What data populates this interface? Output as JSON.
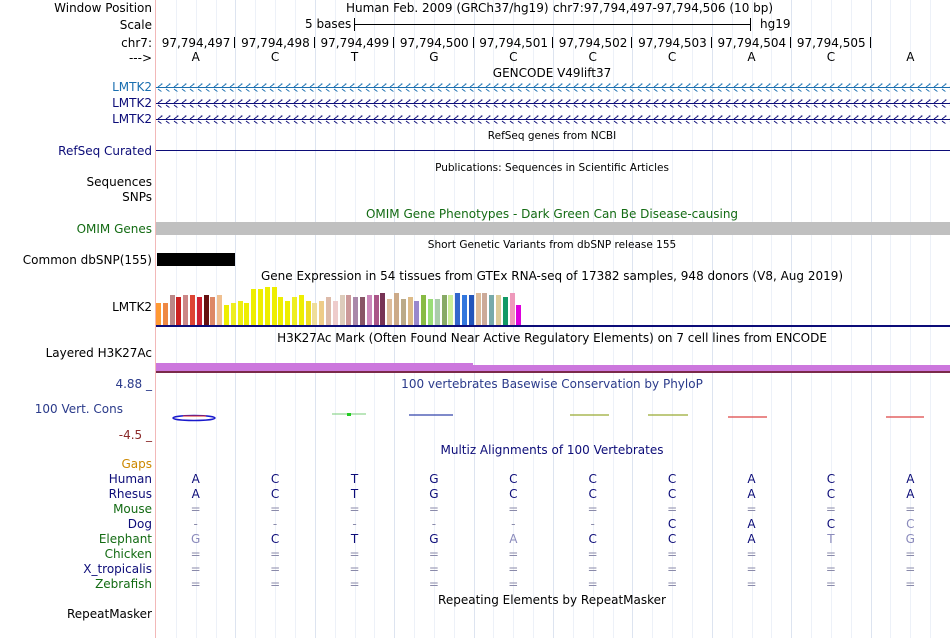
{
  "header": {
    "window_position_label": "Window Position",
    "assembly": "Human Feb. 2009 (GRCh37/hg19)",
    "position": "chr7:97,794,497-97,794,506 (10 bp)",
    "scale_label": "Scale",
    "scale_text": "5 bases",
    "db": "hg19",
    "chrom_label": "chr7:",
    "strand_label": "--->",
    "coords": [
      "97,794,497",
      "97,794,498",
      "97,794,499",
      "97,794,500",
      "97,794,501",
      "97,794,502",
      "97,794,503",
      "97,794,504",
      "97,794,505"
    ],
    "bases": [
      "A",
      "C",
      "T",
      "G",
      "C",
      "C",
      "C",
      "A",
      "C",
      "A"
    ]
  },
  "tracks": {
    "gencode": {
      "title": "GENCODE V49lift37",
      "genes": [
        "LMTK2",
        "LMTK2",
        "LMTK2"
      ],
      "color": "#1a6fb0"
    },
    "refseq": {
      "title": "RefSeq genes from NCBI",
      "label": "RefSeq Curated",
      "color": "#0c0c78"
    },
    "publications": {
      "title": "Publications: Sequences in Scientific Articles",
      "labels": [
        "Sequences",
        "SNPs"
      ]
    },
    "omim": {
      "title": "OMIM Gene Phenotypes - Dark Green Can Be Disease-causing",
      "label": "OMIM Genes",
      "color": "#136b13"
    },
    "dbsnp": {
      "title": "Short Genetic Variants from dbSNP release 155",
      "label": "Common dbSNP(155)"
    },
    "gtex": {
      "title": "Gene Expression in 54 tissues from GTEx RNA-seq of 17382 samples, 948 donors (V8, Aug 2019)",
      "label": "LMTK2",
      "levels": [
        0.55,
        0.55,
        0.75,
        0.7,
        0.75,
        0.75,
        0.7,
        0.75,
        0.7,
        0.75,
        0.5,
        0.55,
        0.6,
        0.55,
        0.9,
        0.9,
        0.95,
        0.95,
        0.7,
        0.6,
        0.7,
        0.75,
        0.6,
        0.55,
        0.6,
        0.7,
        0.6,
        0.75,
        0.75,
        0.7,
        0.7,
        0.75,
        0.75,
        0.8,
        0.65,
        0.8,
        0.65,
        0.7,
        0.6,
        0.75,
        0.65,
        0.65,
        0.75,
        0.75,
        0.8,
        0.75,
        0.75,
        0.8,
        0.8,
        0.75,
        0.75,
        0.7,
        0.8,
        0.5
      ],
      "colors": [
        "#ff9933",
        "#ee8844",
        "#bb8888",
        "#cc2222",
        "#cc8888",
        "#dd4433",
        "#cc2233",
        "#661111",
        "#dd8866",
        "#f0c090",
        "#eeee00",
        "#eeee22",
        "#eeee11",
        "#eeee00",
        "#eeee00",
        "#eeee00",
        "#eeee00",
        "#eeee00",
        "#eeee00",
        "#eeee00",
        "#eeee22",
        "#eeee00",
        "#eedd22",
        "#eedd99",
        "#eecc88",
        "#ddbbaa",
        "#eecccc",
        "#ddccbb",
        "#cc9999",
        "#aa88aa",
        "#885566",
        "#cc88bb",
        "#aa5588",
        "#773355",
        "#ddbb99",
        "#ccaa88",
        "#bbaa88",
        "#ddbb88",
        "#9988cc",
        "#88bb44",
        "#99dd77",
        "#aaccaa",
        "#88aa66",
        "#ccee99",
        "#3366cc",
        "#3377dd",
        "#2255bb",
        "#ddbb99",
        "#ccaa99",
        "#77aaaa",
        "#ddcc99",
        "#119966",
        "#ee99bb",
        "#dd00dd"
      ]
    },
    "h3k27ac": {
      "title": "H3K27Ac Mark (Often Found Near Active Regulatory Elements) on 7 cell lines from ENCODE",
      "label": "Layered H3K27Ac",
      "color": "#cc77dd"
    },
    "cons": {
      "title": "100 vertebrates Basewise Conservation by PhyloP",
      "label": "100 Vert. Cons",
      "ymax": "4.88 _",
      "ymin": "-4.5 _"
    },
    "multiz": {
      "title": "Multiz Alignments of 100 Vertebrates",
      "gaps_label": "Gaps",
      "species": [
        {
          "name": "Human",
          "bases": [
            "A",
            "C",
            "T",
            "G",
            "C",
            "C",
            "C",
            "A",
            "C",
            "A"
          ]
        },
        {
          "name": "Rhesus",
          "bases": [
            "A",
            "C",
            "T",
            "G",
            "C",
            "C",
            "C",
            "A",
            "C",
            "A"
          ]
        },
        {
          "name": "Mouse",
          "bases": [
            "=",
            "=",
            "=",
            "=",
            "=",
            "=",
            "=",
            "=",
            "=",
            "="
          ]
        },
        {
          "name": "Dog",
          "bases": [
            "-",
            "-",
            "-",
            "-",
            "-",
            "-",
            "C",
            "A",
            "C",
            "C"
          ]
        },
        {
          "name": "Elephant",
          "bases": [
            "G",
            "C",
            "T",
            "G",
            "A",
            "C",
            "C",
            "A",
            "T",
            "G"
          ]
        },
        {
          "name": "Chicken",
          "bases": [
            "=",
            "=",
            "=",
            "=",
            "=",
            "=",
            "=",
            "=",
            "=",
            "="
          ]
        },
        {
          "name": "X_tropicalis",
          "bases": [
            "=",
            "=",
            "=",
            "=",
            "=",
            "=",
            "=",
            "=",
            "=",
            "="
          ]
        },
        {
          "name": "Zebrafish",
          "bases": [
            "=",
            "=",
            "=",
            "=",
            "=",
            "=",
            "=",
            "=",
            "=",
            "="
          ]
        }
      ]
    },
    "repeatmasker": {
      "title": "Repeating Elements by RepeatMasker",
      "label": "RepeatMasker"
    }
  }
}
